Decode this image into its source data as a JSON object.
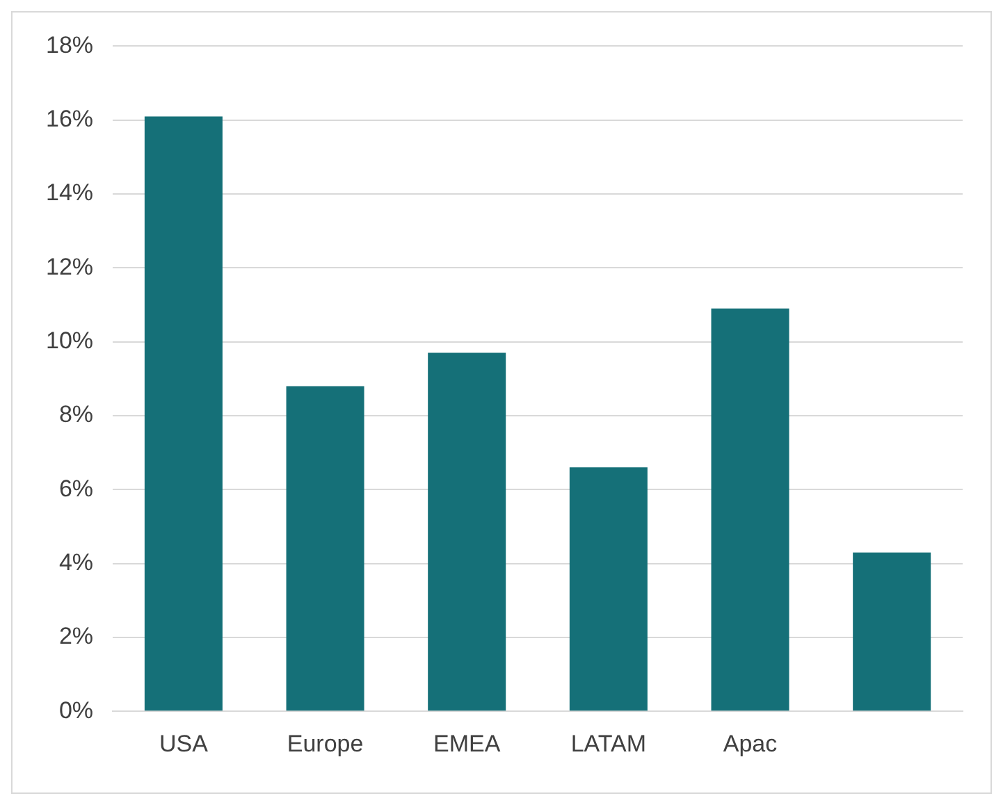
{
  "chart_data": {
    "type": "bar",
    "categories": [
      "USA",
      "Europe",
      "EMEA",
      "LATAM",
      "Apac",
      null
    ],
    "values": [
      16.1,
      8.8,
      9.7,
      6.6,
      10.9,
      4.3
    ],
    "color": "#157078",
    "ylim": [
      0,
      18
    ],
    "yticks": [
      {
        "value": 0,
        "label": "0%"
      },
      {
        "value": 2,
        "label": "2%"
      },
      {
        "value": 4,
        "label": "4%"
      },
      {
        "value": 6,
        "label": "6%"
      },
      {
        "value": 8,
        "label": "8%"
      },
      {
        "value": 10,
        "label": "10%"
      },
      {
        "value": 12,
        "label": "12%"
      },
      {
        "value": 14,
        "label": "14%"
      },
      {
        "value": 16,
        "label": "16%"
      },
      {
        "value": 18,
        "label": "18%"
      }
    ],
    "grid": "y",
    "legend": false
  }
}
